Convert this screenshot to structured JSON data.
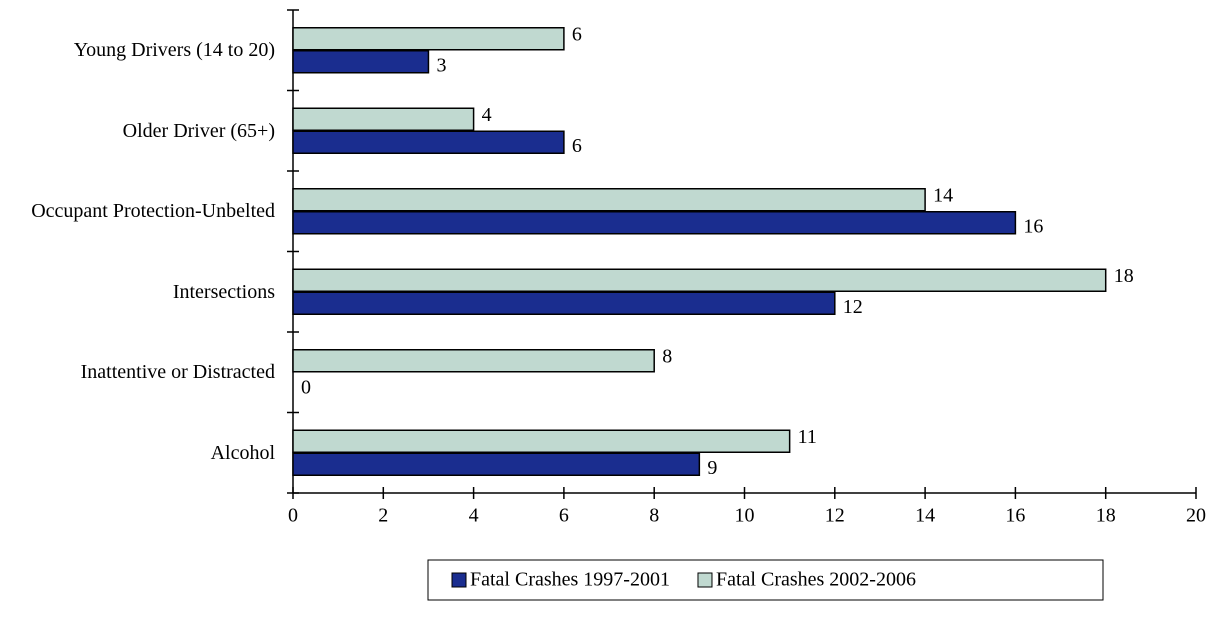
{
  "chart_data": {
    "type": "bar",
    "orientation": "horizontal",
    "categories": [
      "Young Drivers (14 to 20)",
      "Older Driver (65+)",
      "Occupant Protection-Unbelted",
      "Intersections",
      "Inattentive or Distracted",
      "Alcohol"
    ],
    "series": [
      {
        "name": "Fatal Crashes 1997-2001",
        "color": "#1a2d8f",
        "values": [
          3,
          6,
          16,
          12,
          0,
          9
        ]
      },
      {
        "name": "Fatal Crashes 2002-2006",
        "color": "#c0d9d0",
        "values": [
          6,
          4,
          14,
          18,
          8,
          11
        ]
      }
    ],
    "xlim": [
      0,
      20
    ],
    "xticks": [
      0,
      2,
      4,
      6,
      8,
      10,
      12,
      14,
      16,
      18,
      20
    ],
    "legend": "bottom"
  }
}
